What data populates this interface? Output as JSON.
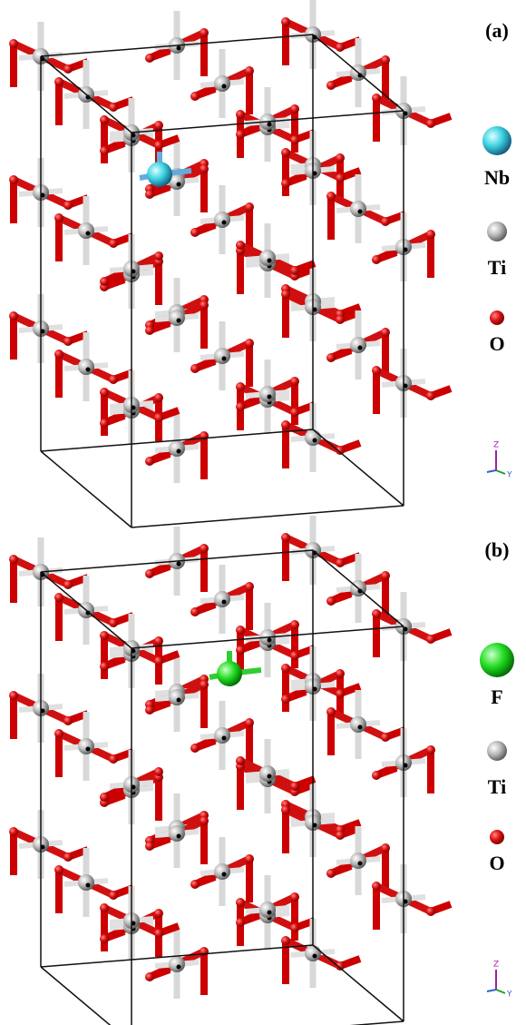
{
  "panels": [
    {
      "label": "(a)",
      "legend": [
        {
          "label": "Nb"
        },
        {
          "label": "Ti"
        },
        {
          "label": "O"
        }
      ],
      "axes": {
        "z": "Z",
        "y": "Y"
      }
    },
    {
      "label": "(b)",
      "legend": [
        {
          "label": "F"
        },
        {
          "label": "Ti"
        },
        {
          "label": "O"
        }
      ],
      "axes": {
        "z": "Z",
        "y": "Y"
      }
    }
  ]
}
